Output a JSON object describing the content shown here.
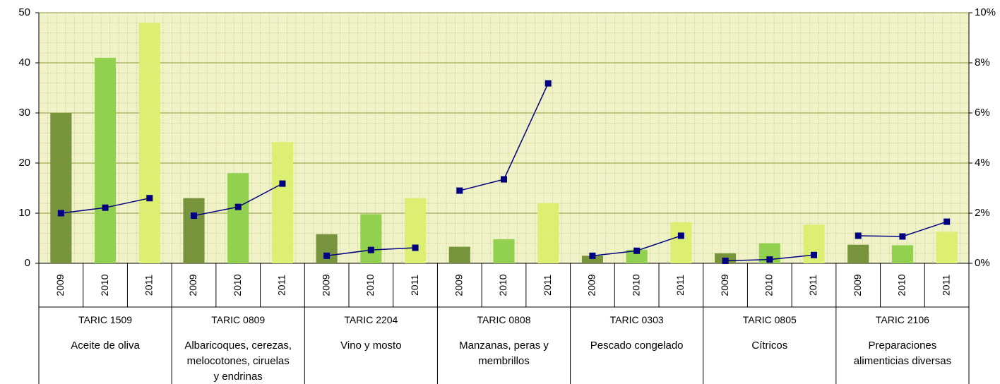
{
  "chart_data": {
    "type": "bar_line",
    "years": [
      "2009",
      "2010",
      "2011"
    ],
    "bar_colors": [
      "#77933c",
      "#92d050",
      "#dcef72"
    ],
    "line_color": "#000080",
    "groups": [
      {
        "code": "TARIC 1509",
        "name_lines": [
          "Aceite de oliva"
        ],
        "bars": [
          30,
          41,
          48
        ],
        "share": [
          2.0,
          2.22,
          2.6
        ]
      },
      {
        "code": "TARIC 0809",
        "name_lines": [
          "Albaricoques, cerezas,",
          "melocotones, ciruelas",
          "y endrinas"
        ],
        "bars": [
          13,
          18,
          24.2
        ],
        "share": [
          1.9,
          2.25,
          3.18
        ]
      },
      {
        "code": "TARIC 2204",
        "name_lines": [
          "Vino y mosto"
        ],
        "bars": [
          5.8,
          9.8,
          13
        ],
        "share": [
          0.3,
          0.53,
          0.62
        ]
      },
      {
        "code": "TARIC 0808",
        "name_lines": [
          "Manzanas, peras y",
          "membrillos"
        ],
        "bars": [
          3.3,
          4.8,
          12
        ],
        "share": [
          2.9,
          3.35,
          7.18
        ]
      },
      {
        "code": "TARIC 0303",
        "name_lines": [
          "Pescado congelado"
        ],
        "bars": [
          1.5,
          2.7,
          8.2
        ],
        "share": [
          0.3,
          0.5,
          1.1
        ]
      },
      {
        "code": "TARIC 0805",
        "name_lines": [
          "Cítricos"
        ],
        "bars": [
          2,
          4,
          7.7
        ],
        "share": [
          0.1,
          0.15,
          0.33
        ]
      },
      {
        "code": "TARIC 2106",
        "name_lines": [
          "Preparaciones",
          "alimenticias diversas"
        ],
        "bars": [
          3.7,
          3.6,
          6.3
        ],
        "share": [
          1.1,
          1.07,
          1.66
        ]
      }
    ],
    "ylim": [
      0,
      50
    ],
    "yticks": [
      0,
      10,
      20,
      30,
      40,
      50
    ],
    "y2lim": [
      0,
      10
    ],
    "y2ticks": [
      {
        "value": 0,
        "label": "0%"
      },
      {
        "value": 2,
        "label": "2%"
      },
      {
        "value": 4,
        "label": "4%"
      },
      {
        "value": 6,
        "label": "6%"
      },
      {
        "value": 8,
        "label": "8%"
      },
      {
        "value": 10,
        "label": "10%"
      }
    ],
    "grid": true
  }
}
